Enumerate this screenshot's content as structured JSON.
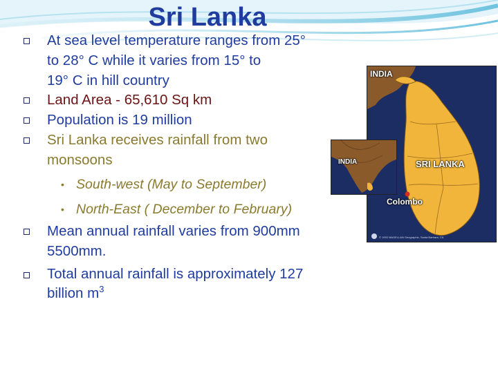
{
  "slide": {
    "title": "Sri Lanka",
    "bullets": [
      {
        "lines": [
          "At sea level temperature ranges from 25°",
          "to 28°  C while it varies from 15°  to",
          "19°  C in hill country"
        ]
      },
      {
        "text": "Land Area - 65,610 Sq km"
      },
      {
        "text": "Population  is 19 million"
      },
      {
        "lines": [
          "Sri Lanka receives rainfall from two",
          "monsoons"
        ]
      },
      {
        "lines": [
          "Mean annual rainfall varies from  900mm",
          "5500mm."
        ]
      },
      {
        "lines": [
          "Total annual rainfall is approximately 127",
          "billion m"
        ],
        "superscript": "3"
      }
    ],
    "sub_bullets": [
      "South-west (May to September)",
      "North-East ( December to February)"
    ],
    "bullet_symbol": "□",
    "sub_bullet_symbol": "•"
  },
  "map": {
    "labels": {
      "india_main": "INDIA",
      "india_inset": "INDIA",
      "country": "SRI LANKA",
      "city": "Colombo"
    },
    "copyright": "© 1992 MAGELLAN Geographix, Santa Barbara, CA"
  },
  "colors": {
    "title": "#1f3c9e",
    "text_blue": "#1f3c9e",
    "text_darkred": "#6b1414",
    "text_olive": "#8a7a2e",
    "land": "#f0b53a",
    "sea": "#1b2d63",
    "city_marker": "#d92b1e"
  }
}
